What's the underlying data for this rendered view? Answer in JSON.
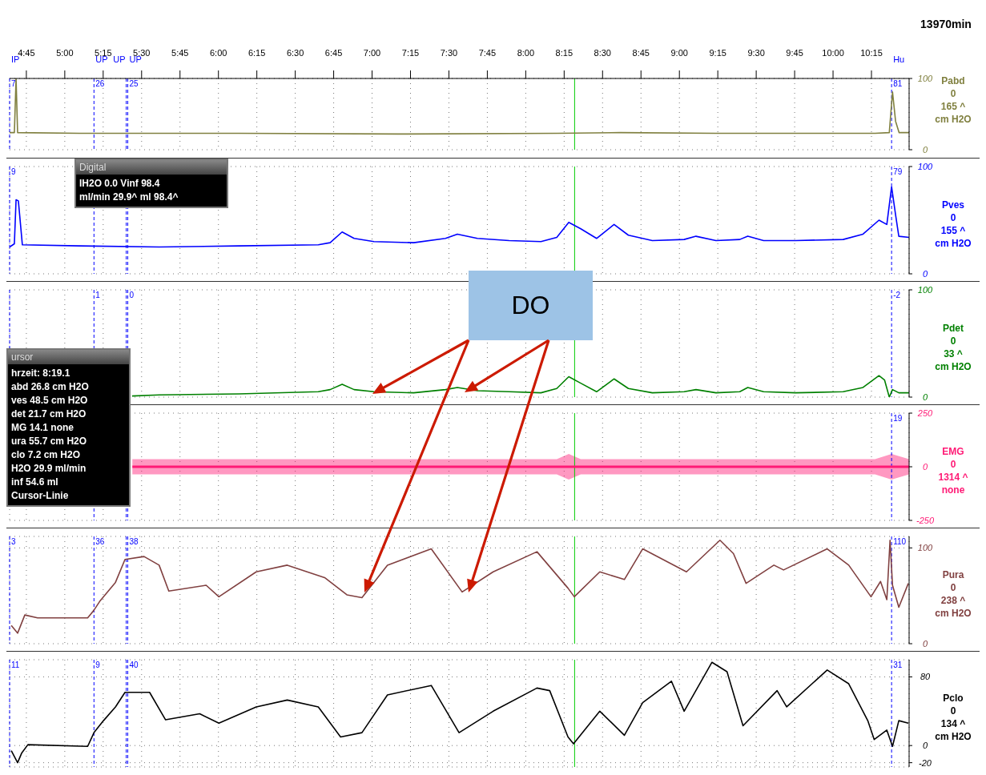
{
  "chart_data": [
    {
      "type": "line",
      "ylabel": "Pabd\n0\n165 ^\ncm H2O",
      "xlim": [
        4.641,
        10.495
      ],
      "ylim": [
        0,
        100
      ],
      "yticks": [
        0,
        100
      ],
      "grid": true,
      "xticks": [
        {
          "value": 4.75,
          "label": "4:45"
        },
        {
          "value": 5,
          "label": "5:00"
        },
        {
          "value": 5.25,
          "label": "5:15"
        },
        {
          "value": 5.5,
          "label": "5:30"
        },
        {
          "value": 5.75,
          "label": "5:45"
        },
        {
          "value": 6,
          "label": "6:00"
        },
        {
          "value": 6.25,
          "label": "6:15"
        },
        {
          "value": 6.5,
          "label": "6:30"
        },
        {
          "value": 6.75,
          "label": "6:45"
        },
        {
          "value": 7,
          "label": "7:00"
        },
        {
          "value": 7.25,
          "label": "7:15"
        },
        {
          "value": 7.5,
          "label": "7:30"
        },
        {
          "value": 7.75,
          "label": "7:45"
        },
        {
          "value": 8,
          "label": "8:00"
        },
        {
          "value": 8.25,
          "label": "8:15"
        },
        {
          "value": 8.5,
          "label": "8:30"
        },
        {
          "value": 8.75,
          "label": "8:45"
        },
        {
          "value": 9,
          "label": "9:00"
        },
        {
          "value": 9.25,
          "label": "9:15"
        },
        {
          "value": 9.5,
          "label": "9:30"
        },
        {
          "value": 9.75,
          "label": "9:45"
        },
        {
          "value": 10,
          "label": "10:00"
        },
        {
          "value": 10.25,
          "label": "10:15"
        }
      ],
      "series": [
        {
          "color": "#808040",
          "x": [
            4.641,
            4.672,
            4.683,
            4.693,
            5.097,
            6.132,
            7.167,
            8.202,
            8.616,
            9.238,
            9.755,
            10.273,
            10.366,
            10.387,
            10.407,
            10.43,
            10.495
          ],
          "values": [
            24,
            24,
            100,
            24,
            23,
            23,
            22,
            23,
            24,
            23,
            23,
            23,
            24,
            81,
            40,
            24,
            24
          ]
        }
      ],
      "ref_lines": [
        {
          "axis": "x",
          "value": 4.641,
          "label": "IP",
          "color": "#0000ff",
          "line_style": "dashed"
        },
        {
          "axis": "x",
          "value": 5.19,
          "label": "UP",
          "color": "#0000ff",
          "line_style": "dashed"
        },
        {
          "axis": "x",
          "value": 5.4,
          "label": "UP",
          "color": "#0000ff",
          "line_style": "dashed"
        },
        {
          "axis": "x",
          "value": 5.41,
          "label": "UP",
          "color": "#0000ff",
          "line_style": "dashed"
        },
        {
          "axis": "x",
          "value": 10.381,
          "label": "Hu",
          "color": "#0000ff",
          "line_style": "dashed"
        },
        {
          "axis": "x",
          "value": 8.318,
          "color": "#00cc00",
          "line_style": "solid"
        }
      ],
      "annotations": [
        "13970min",
        {
          "text": "7",
          "x": 4.641,
          "y": 100
        },
        {
          "text": "26",
          "x": 5.19,
          "y": 100
        },
        {
          "text": "25",
          "x": 5.41,
          "y": 100
        },
        {
          "text": "81",
          "x": 10.381,
          "y": 100
        }
      ]
    },
    {
      "type": "line",
      "ylabel": "Pves\n0\n155 ^\ncm H2O",
      "tick_labels": "y",
      "xlim": [
        4.641,
        10.495
      ],
      "ylim": [
        0,
        100
      ],
      "yticks": [
        0,
        100
      ],
      "grid": true,
      "xticks": [
        4.75,
        5,
        5.25,
        5.5,
        5.75,
        6,
        6.25,
        6.5,
        6.75,
        7,
        7.25,
        7.5,
        7.75,
        8,
        8.25,
        8.5,
        8.75,
        9,
        9.25,
        9.5,
        9.75,
        10,
        10.25
      ],
      "series": [
        {
          "color": "#0000ff",
          "x": [
            4.641,
            4.672,
            4.683,
            4.698,
            4.724,
            5.097,
            5.614,
            6.132,
            6.65,
            6.727,
            6.805,
            6.883,
            7.012,
            7.271,
            7.478,
            7.555,
            7.685,
            7.892,
            8.099,
            8.202,
            8.28,
            8.358,
            8.461,
            8.575,
            8.668,
            8.824,
            9.031,
            9.108,
            9.238,
            9.393,
            9.445,
            9.548,
            9.755,
            10.066,
            10.195,
            10.299,
            10.35,
            10.381,
            10.407,
            10.428,
            10.495
          ],
          "values": [
            25,
            28,
            69,
            68,
            27,
            26,
            25,
            26,
            27,
            29,
            39,
            33,
            30,
            29,
            33,
            37,
            33,
            31,
            30,
            34,
            48,
            42,
            33,
            46,
            36,
            31,
            32,
            35,
            31,
            32,
            35,
            31,
            31,
            32,
            37,
            50,
            46,
            81,
            55,
            35,
            34
          ]
        }
      ],
      "ref_lines": [
        {
          "axis": "x",
          "value": 4.641,
          "color": "#0000ff",
          "line_style": "dashed"
        },
        {
          "axis": "x",
          "value": 5.19,
          "color": "#0000ff",
          "line_style": "dashed"
        },
        {
          "axis": "x",
          "value": 5.4,
          "color": "#0000ff",
          "line_style": "dashed"
        },
        {
          "axis": "x",
          "value": 5.41,
          "color": "#0000ff",
          "line_style": "dashed"
        },
        {
          "axis": "x",
          "value": 10.381,
          "color": "#0000ff",
          "line_style": "dashed"
        },
        {
          "axis": "x",
          "value": 8.318,
          "color": "#00cc00",
          "line_style": "solid"
        }
      ],
      "annotations": [
        {
          "text": "9",
          "x": 4.641,
          "y": 100
        },
        {
          "text": "79",
          "x": 10.381,
          "y": 100
        }
      ]
    },
    {
      "type": "line",
      "ylabel": "Pdet\n0\n33 ^\ncm H2O",
      "tick_labels": "y",
      "xlim": [
        4.641,
        10.495
      ],
      "ylim": [
        0,
        100
      ],
      "yticks": [
        0,
        100
      ],
      "grid": true,
      "xticks": [
        4.75,
        5,
        5.25,
        5.5,
        5.75,
        6,
        6.25,
        6.5,
        6.75,
        7,
        7.25,
        7.5,
        7.75,
        8,
        8.25,
        8.5,
        8.75,
        9,
        9.25,
        9.5,
        9.75,
        10,
        10.25
      ],
      "series": [
        {
          "color": "#008000",
          "x": [
            5.438,
            5.614,
            6.132,
            6.65,
            6.727,
            6.805,
            6.883,
            7.012,
            7.271,
            7.478,
            7.555,
            7.685,
            7.892,
            8.099,
            8.202,
            8.28,
            8.358,
            8.461,
            8.575,
            8.668,
            8.824,
            9.031,
            9.108,
            9.238,
            9.393,
            9.445,
            9.548,
            9.755,
            10.066,
            10.195,
            10.299,
            10.335,
            10.366,
            10.387,
            10.428,
            10.495
          ],
          "values": [
            1,
            2,
            3,
            5,
            7,
            12,
            7,
            5,
            4,
            7,
            9,
            6,
            5,
            4,
            8,
            19,
            13,
            5,
            17,
            8,
            4,
            5,
            7,
            4,
            5,
            9,
            5,
            4,
            5,
            9,
            20,
            16,
            0,
            7,
            4,
            4
          ]
        }
      ],
      "ref_lines": [
        {
          "axis": "x",
          "value": 4.641,
          "color": "#0000ff",
          "line_style": "dashed"
        },
        {
          "axis": "x",
          "value": 5.19,
          "color": "#0000ff",
          "line_style": "dashed"
        },
        {
          "axis": "x",
          "value": 5.4,
          "color": "#0000ff",
          "line_style": "dashed"
        },
        {
          "axis": "x",
          "value": 5.41,
          "color": "#0000ff",
          "line_style": "dashed"
        },
        {
          "axis": "x",
          "value": 10.381,
          "color": "#0000ff",
          "line_style": "dashed"
        },
        {
          "axis": "x",
          "value": 8.318,
          "color": "#00cc00",
          "line_style": "solid"
        }
      ],
      "annotations": [
        "DO",
        {
          "text": "1",
          "x": 5.19,
          "y": 100
        },
        {
          "text": "0",
          "x": 5.41,
          "y": 100
        },
        {
          "text": "-2",
          "x": 10.381,
          "y": 100
        }
      ]
    },
    {
      "type": "line",
      "ylabel": "EMG\n0\n1314 ^\nnone",
      "tick_labels": "y",
      "xlim": [
        4.641,
        10.495
      ],
      "ylim": [
        -250,
        250
      ],
      "yticks": [
        -250,
        0,
        250
      ],
      "grid": true,
      "xticks": [
        4.75,
        5,
        5.25,
        5.5,
        5.75,
        6,
        6.25,
        6.5,
        6.75,
        7,
        7.25,
        7.5,
        7.75,
        8,
        8.25,
        8.5,
        8.75,
        9,
        9.25,
        9.5,
        9.75,
        10,
        10.25
      ],
      "series": [
        {
          "color": "#ff1a75",
          "x": [
            5.44,
            6.132,
            7.167,
            8.202,
            8.28,
            8.358,
            9.238,
            10.273,
            10.381,
            10.495
          ],
          "values": [
            0,
            0,
            0,
            0,
            0,
            0,
            0,
            0,
            0,
            0
          ],
          "lower": [
            -35,
            -35,
            -35,
            -35,
            -60,
            -35,
            -35,
            -35,
            -60,
            -35
          ],
          "upper": [
            35,
            35,
            35,
            35,
            60,
            35,
            35,
            35,
            60,
            35
          ]
        }
      ],
      "ref_lines": [
        {
          "axis": "x",
          "value": 5.19,
          "color": "#0000ff",
          "line_style": "dashed"
        },
        {
          "axis": "x",
          "value": 5.4,
          "color": "#0000ff",
          "line_style": "dashed"
        },
        {
          "axis": "x",
          "value": 5.41,
          "color": "#0000ff",
          "line_style": "dashed"
        },
        {
          "axis": "x",
          "value": 10.381,
          "color": "#0000ff",
          "line_style": "dashed"
        },
        {
          "axis": "x",
          "value": 8.318,
          "color": "#00cc00",
          "line_style": "solid"
        }
      ],
      "annotations": [
        {
          "text": "19",
          "x": 10.381,
          "y": 250
        }
      ]
    },
    {
      "type": "line",
      "ylabel": "Pura\n0\n238 ^\ncm H2O",
      "tick_labels": "y",
      "xlim": [
        4.641,
        10.495
      ],
      "ylim": [
        0,
        112
      ],
      "yticks": [
        0,
        100
      ],
      "grid": true,
      "xticks": [
        4.75,
        5,
        5.25,
        5.5,
        5.75,
        6,
        6.25,
        6.5,
        6.75,
        7,
        7.25,
        7.5,
        7.75,
        8,
        8.25,
        8.5,
        8.75,
        9,
        9.25,
        9.5,
        9.75,
        10,
        10.25
      ],
      "series": [
        {
          "color": "#804040",
          "x": [
            4.652,
            4.693,
            4.74,
            4.823,
            5.149,
            5.19,
            5.231,
            5.33,
            5.392,
            5.516,
            5.614,
            5.677,
            5.92,
            6.003,
            6.246,
            6.448,
            6.691,
            6.836,
            6.934,
            7.1,
            7.385,
            7.586,
            7.788,
            8.073,
            8.275,
            8.316,
            8.482,
            8.642,
            8.761,
            9.046,
            9.264,
            9.352,
            9.434,
            9.615,
            9.678,
            9.962,
            10.102,
            10.247,
            10.309,
            10.35,
            10.371,
            10.387,
            10.428,
            10.49
          ],
          "values": [
            19,
            11,
            30,
            27,
            27,
            35,
            45,
            64,
            88,
            91,
            82,
            55,
            61,
            49,
            75,
            82,
            69,
            51,
            48,
            82,
            99,
            54,
            75,
            96,
            58,
            49,
            75,
            67,
            99,
            75,
            108,
            94,
            63,
            82,
            77,
            99,
            82,
            49,
            65,
            46,
            108,
            61,
            38,
            63
          ]
        }
      ],
      "ref_lines": [
        {
          "axis": "x",
          "value": 4.641,
          "color": "#0000ff",
          "line_style": "dashed"
        },
        {
          "axis": "x",
          "value": 5.19,
          "color": "#0000ff",
          "line_style": "dashed"
        },
        {
          "axis": "x",
          "value": 5.4,
          "color": "#0000ff",
          "line_style": "dashed"
        },
        {
          "axis": "x",
          "value": 5.41,
          "color": "#0000ff",
          "line_style": "dashed"
        },
        {
          "axis": "x",
          "value": 10.381,
          "color": "#0000ff",
          "line_style": "dashed"
        },
        {
          "axis": "x",
          "value": 8.318,
          "color": "#00cc00",
          "line_style": "solid"
        }
      ],
      "annotations": [
        {
          "text": "3",
          "x": 4.641,
          "y": 112
        },
        {
          "text": "36",
          "x": 5.19,
          "y": 112
        },
        {
          "text": "38",
          "x": 5.41,
          "y": 112
        },
        {
          "text": "110",
          "x": 10.381,
          "y": 112
        }
      ]
    },
    {
      "type": "line",
      "ylabel": "Pclo\n0\n134 ^\ncm H2O",
      "tick_labels": "y",
      "xlim": [
        4.641,
        10.495
      ],
      "ylim": [
        -25,
        100
      ],
      "yticks": [
        -20,
        0,
        80
      ],
      "grid": true,
      "xticks": [
        4.75,
        5,
        5.25,
        5.5,
        5.75,
        6,
        6.25,
        6.5,
        6.75,
        7,
        7.25,
        7.5,
        7.75,
        8,
        8.25,
        8.5,
        8.75,
        9,
        9.25,
        9.5,
        9.75,
        10,
        10.25
      ],
      "series": [
        {
          "color": "#000000",
          "x": [
            4.652,
            4.693,
            4.719,
            4.76,
            5.149,
            5.19,
            5.252,
            5.33,
            5.392,
            5.552,
            5.656,
            5.878,
            6.003,
            6.246,
            6.448,
            6.65,
            6.795,
            6.934,
            7.1,
            7.385,
            7.566,
            7.788,
            8.073,
            8.156,
            8.275,
            8.311,
            8.482,
            8.642,
            8.761,
            8.948,
            9.031,
            9.212,
            9.31,
            9.414,
            9.636,
            9.698,
            9.962,
            10.102,
            10.226,
            10.268,
            10.35,
            10.387,
            10.428,
            10.49
          ],
          "values": [
            -6,
            -20,
            -9,
            1,
            -1,
            15,
            29,
            45,
            62,
            62,
            30,
            37,
            26,
            45,
            53,
            45,
            10,
            15,
            59,
            70,
            15,
            40,
            67,
            64,
            10,
            2,
            40,
            12,
            50,
            75,
            40,
            97,
            86,
            23,
            64,
            45,
            88,
            72,
            29,
            7,
            18,
            -1,
            29,
            26
          ]
        }
      ],
      "ref_lines": [
        {
          "axis": "x",
          "value": 4.641,
          "color": "#0000ff",
          "line_style": "dashed"
        },
        {
          "axis": "x",
          "value": 5.19,
          "color": "#0000ff",
          "line_style": "dashed"
        },
        {
          "axis": "x",
          "value": 5.4,
          "color": "#0000ff",
          "line_style": "dashed"
        },
        {
          "axis": "x",
          "value": 5.41,
          "color": "#0000ff",
          "line_style": "dashed"
        },
        {
          "axis": "x",
          "value": 10.381,
          "color": "#0000ff",
          "line_style": "dashed"
        },
        {
          "axis": "x",
          "value": 8.318,
          "color": "#00cc00",
          "line_style": "solid"
        }
      ],
      "annotations": [
        {
          "text": "11",
          "x": 4.641,
          "y": 100
        },
        {
          "text": "9",
          "x": 5.19,
          "y": 100
        },
        {
          "text": "40",
          "x": 5.41,
          "y": 100
        },
        {
          "text": "31",
          "x": 10.381,
          "y": 100
        }
      ]
    },
    {
      "type": "other",
      "title": "Digital",
      "annotations": [
        "IH2O 0.0 Vinf 98.4",
        "ml/min 29.9^ ml 98.4^"
      ]
    },
    {
      "type": "other",
      "title": "ursor",
      "annotations": [
        "hrzeit: 8:19.1",
        "abd 26.8 cm H2O",
        "ves 48.5 cm H2O",
        "det 21.7 cm H2O",
        "MG 14.1 none",
        "ura 55.7 cm H2O",
        "clo 7.2 cm H2O",
        "H2O 29.9 ml/min",
        "inf 54.6 ml",
        "Cursor-Linie"
      ]
    }
  ]
}
